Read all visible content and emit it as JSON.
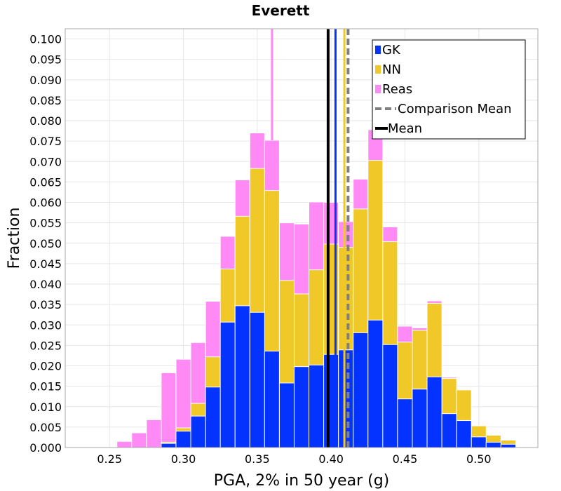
{
  "chart_data": {
    "type": "bar",
    "title": "Everett",
    "xlabel": "PGA, 2% in 50 year (g)",
    "ylabel": "Fraction",
    "xlim": [
      0.22,
      0.54
    ],
    "ylim": [
      0.0,
      0.1025
    ],
    "bin_width": 0.01,
    "xticks": [
      "0.25",
      "0.30",
      "0.35",
      "0.40",
      "0.45",
      "0.50"
    ],
    "yticks": [
      "0.000",
      "0.005",
      "0.010",
      "0.015",
      "0.020",
      "0.025",
      "0.030",
      "0.035",
      "0.040",
      "0.045",
      "0.050",
      "0.055",
      "0.060",
      "0.065",
      "0.070",
      "0.075",
      "0.080",
      "0.085",
      "0.090",
      "0.095",
      "0.100"
    ],
    "bin_centers": [
      0.26,
      0.27,
      0.28,
      0.29,
      0.3,
      0.31,
      0.32,
      0.33,
      0.34,
      0.35,
      0.36,
      0.37,
      0.38,
      0.39,
      0.4,
      0.41,
      0.42,
      0.43,
      0.44,
      0.45,
      0.46,
      0.47,
      0.48,
      0.49,
      0.5,
      0.51,
      0.52
    ],
    "series": [
      {
        "name": "GK",
        "color": "#0433ff",
        "values": [
          0.0,
          0.0,
          0.0,
          0.001,
          0.004,
          0.0077,
          0.0148,
          0.0307,
          0.0347,
          0.0331,
          0.0236,
          0.0158,
          0.0198,
          0.0202,
          0.0228,
          0.0239,
          0.0281,
          0.0312,
          0.0252,
          0.0119,
          0.0143,
          0.0173,
          0.0083,
          0.0066,
          0.0026,
          0.0013,
          0.0008
        ]
      },
      {
        "name": "NN",
        "color": "#f0c827",
        "values": [
          0.0,
          0.0,
          0.0,
          0.0013,
          0.0048,
          0.0108,
          0.0222,
          0.0437,
          0.0566,
          0.0683,
          0.0629,
          0.0409,
          0.0376,
          0.0435,
          0.0498,
          0.049,
          0.0584,
          0.0703,
          0.0504,
          0.0258,
          0.0287,
          0.0353,
          0.0169,
          0.0141,
          0.0053,
          0.003,
          0.0018
        ]
      },
      {
        "name": "Reas",
        "color": "#ff8af5",
        "values": [
          0.0015,
          0.0036,
          0.0068,
          0.0183,
          0.0216,
          0.0257,
          0.0358,
          0.0517,
          0.0655,
          0.077,
          0.0752,
          0.055,
          0.0547,
          0.0601,
          0.06,
          0.0553,
          0.0657,
          0.0778,
          0.054,
          0.0297,
          0.0293,
          0.0359,
          0.0172,
          0.0135,
          0.0053,
          0.0026,
          0.0013
        ]
      }
    ],
    "reas_spike": {
      "x": 0.36,
      "value": 0.1025
    },
    "vertical_lines": [
      {
        "name": "Mean",
        "x": 0.398,
        "color": "#000000",
        "style": "solid"
      },
      {
        "name": "GK mean",
        "x": 0.403,
        "color": "#0433ff",
        "style": "solid"
      },
      {
        "name": "NN mean",
        "x": 0.409,
        "color": "#f0c827",
        "style": "solid"
      },
      {
        "name": "Comparison Mean",
        "x": 0.4115,
        "color": "#808080",
        "style": "dashed"
      }
    ],
    "legend": {
      "placement": "top-right",
      "entries": [
        {
          "label": "GK",
          "symbol": "square",
          "color": "#0433ff"
        },
        {
          "label": "NN",
          "symbol": "square",
          "color": "#f0c827"
        },
        {
          "label": "Reas",
          "symbol": "square",
          "color": "#ff8af5"
        },
        {
          "label": "Comparison Mean",
          "symbol": "dashed-line",
          "color": "#808080"
        },
        {
          "label": "Mean",
          "symbol": "solid-line",
          "color": "#000000"
        }
      ]
    },
    "grid": true
  }
}
